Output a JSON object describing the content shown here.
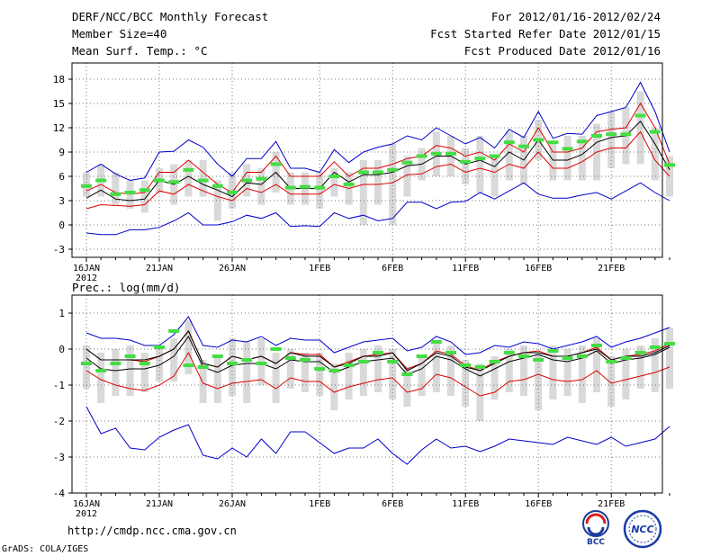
{
  "header": {
    "title": "DERF/NCC/BCC Monthly Forecast",
    "member": "Member Size=40",
    "variable": "Mean Surf. Temp.: °C",
    "period": "For 2012/01/16-2012/02/24",
    "start": "Fcst Started Refer Date 2012/01/15",
    "produced": "Fcst Produced Date 2012/01/16"
  },
  "footer": {
    "url": "http://cmdp.ncc.cma.gov.cn",
    "grads": "GrADS: COLA/IGES",
    "logo_bcc": "BCC",
    "logo_ncc": "NCC"
  },
  "colors": {
    "max_min": "#0000cc",
    "spread": "#dd0000",
    "mean": "#000000",
    "bar": "#d9d9d9",
    "obs": "#44dd44"
  },
  "chart_data": [
    {
      "type": "line",
      "title": "Mean Surf. Temp.: °C",
      "xlabel_ticks": [
        "16JAN",
        "21JAN",
        "26JAN",
        "1FEB",
        "6FEB",
        "11FEB",
        "16FEB",
        "21FEB"
      ],
      "xlabel_year": "2012",
      "x_day_index": [
        0,
        5,
        10,
        16,
        21,
        26,
        31,
        36
      ],
      "ylim": [
        -4,
        20
      ],
      "yticks": [
        "18",
        "15",
        "12",
        "9",
        "6",
        "3",
        "0",
        "-3"
      ],
      "ytick_values": [
        18,
        15,
        12,
        9,
        6,
        3,
        0,
        -3
      ],
      "series": [
        {
          "name": "max",
          "values": [
            6.5,
            7.5,
            6.3,
            5.5,
            5.8,
            9.0,
            9.1,
            10.5,
            9.6,
            7.5,
            6.0,
            8.2,
            8.2,
            10.3,
            7.0,
            7.0,
            6.5,
            9.3,
            7.7,
            9.0,
            9.6,
            10.0,
            11.0,
            10.5,
            12.0,
            11.0,
            10.0,
            10.8,
            9.5,
            11.8,
            10.8,
            14.0,
            10.7,
            11.3,
            11.2,
            13.5,
            14.0,
            14.5,
            17.6,
            14.0,
            9.0
          ]
        },
        {
          "name": "upper",
          "values": [
            4.2,
            5.0,
            4.0,
            3.8,
            4.0,
            6.5,
            6.5,
            8.0,
            6.5,
            5.0,
            4.0,
            6.5,
            6.5,
            8.5,
            6.0,
            6.0,
            6.0,
            7.8,
            6.0,
            7.0,
            7.0,
            7.5,
            8.2,
            8.5,
            9.8,
            9.5,
            8.5,
            9.0,
            8.0,
            10.0,
            9.0,
            12.0,
            9.0,
            9.0,
            9.5,
            11.5,
            11.8,
            12.0,
            15.0,
            12.0,
            7.5
          ]
        },
        {
          "name": "mean",
          "values": [
            3.3,
            4.3,
            3.2,
            3.0,
            3.2,
            5.5,
            5.0,
            6.0,
            5.0,
            4.3,
            3.5,
            5.2,
            5.0,
            6.5,
            4.5,
            4.5,
            4.5,
            6.5,
            5.3,
            6.2,
            6.2,
            6.5,
            7.3,
            7.5,
            8.5,
            8.5,
            7.5,
            8.0,
            7.2,
            9.0,
            8.0,
            10.5,
            8.0,
            8.0,
            8.7,
            10.2,
            10.8,
            11.0,
            12.8,
            10.0,
            6.8
          ]
        },
        {
          "name": "lower",
          "values": [
            2.0,
            2.5,
            2.4,
            2.3,
            2.5,
            4.2,
            3.8,
            5.0,
            4.2,
            3.5,
            3.0,
            4.5,
            4.0,
            5.0,
            3.8,
            3.8,
            3.8,
            5.0,
            4.5,
            5.0,
            5.0,
            5.2,
            6.2,
            6.3,
            7.2,
            7.5,
            6.5,
            7.0,
            6.5,
            7.5,
            7.0,
            9.0,
            7.0,
            7.0,
            7.8,
            9.0,
            9.5,
            9.5,
            11.5,
            8.0,
            6.0
          ]
        },
        {
          "name": "min",
          "values": [
            -1.0,
            -1.2,
            -1.2,
            -0.6,
            -0.6,
            -0.3,
            0.5,
            1.5,
            0.0,
            0.0,
            0.4,
            1.2,
            0.8,
            1.5,
            -0.2,
            -0.1,
            -0.2,
            1.5,
            0.8,
            1.2,
            0.5,
            0.8,
            2.8,
            2.8,
            2.0,
            2.8,
            2.9,
            4.0,
            3.2,
            4.2,
            5.2,
            3.8,
            3.3,
            3.3,
            3.7,
            4.0,
            3.2,
            4.2,
            5.2,
            4.0,
            3.0
          ]
        }
      ],
      "bars": {
        "low": [
          3.5,
          3.5,
          2.5,
          2.0,
          1.5,
          4.0,
          2.5,
          3.5,
          3.5,
          0.5,
          2.0,
          3.5,
          2.5,
          4.0,
          2.5,
          2.5,
          2.0,
          3.5,
          2.5,
          0.0,
          2.5,
          0.0,
          3.5,
          5.5,
          6.0,
          6.0,
          5.0,
          4.0,
          3.5,
          5.5,
          5.0,
          8.0,
          5.5,
          5.5,
          5.5,
          5.5,
          7.0,
          7.5,
          7.5,
          5.5,
          3.5
        ],
        "high": [
          6.5,
          7.5,
          6.5,
          5.5,
          5.5,
          7.0,
          7.5,
          8.0,
          8.0,
          5.5,
          6.5,
          7.5,
          7.0,
          9.0,
          6.5,
          6.5,
          6.5,
          7.0,
          6.5,
          8.0,
          8.0,
          10.0,
          8.5,
          9.5,
          11.5,
          11.0,
          9.5,
          11.0,
          8.5,
          11.5,
          11.0,
          13.0,
          10.0,
          11.0,
          11.0,
          12.5,
          14.0,
          14.5,
          16.5,
          12.0,
          8.5
        ]
      },
      "obs": [
        4.8,
        5.5,
        3.8,
        4.0,
        4.3,
        5.5,
        5.3,
        6.8,
        5.5,
        4.8,
        4.0,
        5.5,
        5.7,
        7.5,
        4.6,
        4.7,
        4.6,
        6.0,
        5.0,
        6.5,
        6.5,
        6.8,
        7.7,
        8.5,
        8.8,
        8.8,
        7.8,
        8.2,
        8.5,
        10.2,
        9.7,
        10.5,
        10.2,
        9.4,
        10.3,
        11.0,
        11.2,
        11.2,
        13.5,
        11.5,
        7.4
      ]
    },
    {
      "type": "line",
      "title": "Prec.: log(mm/d)",
      "xlabel_ticks": [
        "16JAN",
        "21JAN",
        "26JAN",
        "1FEB",
        "6FEB",
        "11FEB",
        "16FEB",
        "21FEB"
      ],
      "xlabel_year": "2012",
      "x_day_index": [
        0,
        5,
        10,
        16,
        21,
        26,
        31,
        36
      ],
      "ylim": [
        -4,
        1.5
      ],
      "yticks": [
        "1",
        "0",
        "-1",
        "-2",
        "-3",
        "-4"
      ],
      "ytick_values": [
        1,
        0,
        -1,
        -2,
        -3,
        -4
      ],
      "series": [
        {
          "name": "max",
          "values": [
            0.45,
            0.3,
            0.3,
            0.25,
            0.1,
            0.1,
            0.4,
            0.9,
            0.1,
            0.05,
            0.25,
            0.2,
            0.35,
            0.1,
            0.3,
            0.25,
            0.25,
            -0.1,
            0.05,
            0.2,
            0.25,
            0.3,
            -0.05,
            0.05,
            0.35,
            0.2,
            -0.15,
            -0.1,
            0.1,
            0.05,
            0.2,
            0.15,
            0.0,
            0.1,
            0.2,
            0.35,
            0.05,
            0.2,
            0.3,
            0.45,
            0.6
          ]
        },
        {
          "name": "upper",
          "values": [
            0.0,
            -0.3,
            -0.3,
            -0.3,
            -0.35,
            -0.2,
            0.0,
            0.5,
            -0.4,
            -0.5,
            -0.2,
            -0.3,
            -0.2,
            -0.4,
            -0.1,
            -0.15,
            -0.15,
            -0.5,
            -0.35,
            -0.2,
            -0.15,
            -0.1,
            -0.55,
            -0.4,
            -0.05,
            -0.15,
            -0.45,
            -0.6,
            -0.35,
            -0.2,
            -0.1,
            -0.05,
            -0.2,
            -0.2,
            -0.1,
            0.05,
            -0.3,
            -0.2,
            -0.15,
            -0.05,
            0.15
          ]
        },
        {
          "name": "mean",
          "values": [
            -0.25,
            -0.55,
            -0.6,
            -0.55,
            -0.55,
            -0.45,
            -0.2,
            0.35,
            -0.5,
            -0.65,
            -0.45,
            -0.4,
            -0.4,
            -0.55,
            -0.3,
            -0.35,
            -0.35,
            -0.65,
            -0.5,
            -0.35,
            -0.3,
            -0.25,
            -0.7,
            -0.55,
            -0.2,
            -0.3,
            -0.55,
            -0.75,
            -0.55,
            -0.35,
            -0.25,
            -0.15,
            -0.3,
            -0.35,
            -0.25,
            -0.05,
            -0.4,
            -0.3,
            -0.25,
            -0.15,
            0.05
          ]
        },
        {
          "name": "lower",
          "values": [
            -0.6,
            -0.85,
            -1.0,
            -1.1,
            -1.15,
            -1.0,
            -0.75,
            -0.1,
            -0.95,
            -1.1,
            -0.95,
            -0.9,
            -0.85,
            -1.1,
            -0.8,
            -0.9,
            -0.9,
            -1.2,
            -1.05,
            -0.95,
            -0.85,
            -0.8,
            -1.2,
            -1.1,
            -0.7,
            -0.8,
            -1.05,
            -1.3,
            -1.2,
            -0.9,
            -0.85,
            -0.7,
            -0.85,
            -0.9,
            -0.85,
            -0.6,
            -0.95,
            -0.85,
            -0.75,
            -0.65,
            -0.5
          ]
        },
        {
          "name": "min",
          "values": [
            -1.6,
            -2.35,
            -2.2,
            -2.75,
            -2.8,
            -2.45,
            -2.25,
            -2.1,
            -2.95,
            -3.05,
            -2.75,
            -3.0,
            -2.5,
            -2.9,
            -2.3,
            -2.3,
            -2.6,
            -2.9,
            -2.75,
            -2.75,
            -2.5,
            -2.9,
            -3.2,
            -2.8,
            -2.5,
            -2.75,
            -2.7,
            -2.85,
            -2.7,
            -2.5,
            -2.55,
            -2.6,
            -2.65,
            -2.45,
            -2.55,
            -2.65,
            -2.45,
            -2.7,
            -2.6,
            -2.5,
            -2.15
          ]
        },
        {
          "name": "raw",
          "values": [
            0.0,
            -0.3,
            -0.3,
            -0.3,
            -0.3,
            -0.2,
            0.0,
            0.5,
            -0.4,
            -0.5,
            -0.2,
            -0.3,
            -0.2,
            -0.4,
            -0.1,
            -0.2,
            -0.2,
            -0.5,
            -0.4,
            -0.2,
            -0.2,
            -0.1,
            -0.6,
            -0.4,
            -0.1,
            -0.2,
            -0.5,
            -0.6,
            -0.4,
            -0.2,
            -0.1,
            -0.1,
            -0.2,
            -0.2,
            -0.1,
            0.0,
            -0.3,
            -0.2,
            -0.2,
            -0.1,
            0.1
          ]
        }
      ],
      "bars": {
        "low": [
          -1.1,
          -1.5,
          -1.3,
          -1.3,
          -1.2,
          -0.9,
          -0.9,
          -0.7,
          -1.5,
          -1.5,
          -1.3,
          -1.5,
          -1.0,
          -1.5,
          -1.1,
          -1.2,
          -1.3,
          -1.7,
          -1.4,
          -1.3,
          -1.2,
          -1.4,
          -1.6,
          -1.3,
          -1.2,
          -1.3,
          -1.6,
          -2.0,
          -1.4,
          -1.2,
          -1.3,
          -1.7,
          -1.4,
          -1.3,
          -1.5,
          -1.2,
          -1.6,
          -1.4,
          -1.1,
          -1.2,
          -1.1
        ],
        "high": [
          0.1,
          -0.1,
          0.0,
          0.1,
          -0.1,
          0.1,
          0.3,
          0.8,
          -0.3,
          -0.2,
          0.3,
          0.2,
          0.3,
          -0.1,
          0.0,
          -0.1,
          -0.1,
          -0.4,
          -0.1,
          0.0,
          0.1,
          0.0,
          -0.5,
          -0.2,
          0.2,
          0.1,
          -0.3,
          -0.4,
          -0.2,
          0.0,
          0.1,
          -0.1,
          0.1,
          0.0,
          0.1,
          0.3,
          -0.2,
          0.0,
          0.1,
          0.3,
          0.6
        ]
      },
      "obs": [
        -0.4,
        -0.6,
        -0.4,
        -0.2,
        -0.4,
        0.05,
        0.5,
        -0.45,
        -0.5,
        -0.2,
        -0.4,
        -0.3,
        -0.4,
        0.0,
        -0.25,
        -0.3,
        -0.55,
        -0.6,
        -0.45,
        -0.35,
        -0.1,
        -0.35,
        -0.7,
        -0.2,
        0.2,
        -0.1,
        -0.45,
        -0.5,
        -0.35,
        -0.1,
        -0.2,
        -0.3,
        -0.05,
        -0.25,
        -0.2,
        0.1,
        -0.35,
        -0.25,
        -0.1,
        0.05,
        0.15
      ]
    }
  ]
}
